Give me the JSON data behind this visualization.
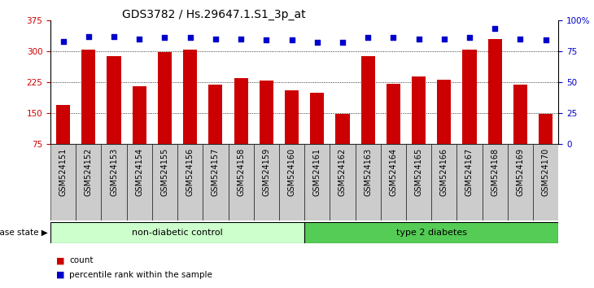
{
  "title": "GDS3782 / Hs.29647.1.S1_3p_at",
  "categories": [
    "GSM524151",
    "GSM524152",
    "GSM524153",
    "GSM524154",
    "GSM524155",
    "GSM524156",
    "GSM524157",
    "GSM524158",
    "GSM524159",
    "GSM524160",
    "GSM524161",
    "GSM524162",
    "GSM524163",
    "GSM524164",
    "GSM524165",
    "GSM524166",
    "GSM524167",
    "GSM524168",
    "GSM524169",
    "GSM524170"
  ],
  "bar_values": [
    170,
    303,
    288,
    215,
    297,
    303,
    218,
    235,
    228,
    205,
    200,
    148,
    288,
    220,
    238,
    230,
    303,
    330,
    218,
    148
  ],
  "percentile_values": [
    83,
    87,
    87,
    85,
    86,
    86,
    85,
    85,
    84,
    84,
    82,
    82,
    86,
    86,
    85,
    85,
    86,
    93,
    85,
    84
  ],
  "bar_color": "#cc0000",
  "dot_color": "#0000cc",
  "ylim_left": [
    75,
    375
  ],
  "ylim_right": [
    0,
    100
  ],
  "yticks_left": [
    75,
    150,
    225,
    300,
    375
  ],
  "yticks_right": [
    0,
    25,
    50,
    75,
    100
  ],
  "grid_values": [
    150,
    225,
    300
  ],
  "non_diabetic_count": 10,
  "type2_count": 10,
  "non_diabetic_label": "non-diabetic control",
  "type2_label": "type 2 diabetes",
  "disease_state_label": "disease state",
  "legend_count_label": "count",
  "legend_percentile_label": "percentile rank within the sample",
  "non_diabetic_color": "#ccffcc",
  "type2_color": "#55cc55",
  "xticklabel_bg": "#cccccc",
  "title_fontsize": 10,
  "axis_label_fontsize": 8,
  "tick_fontsize": 7.5,
  "bar_width": 0.55,
  "background_color": "#ffffff"
}
